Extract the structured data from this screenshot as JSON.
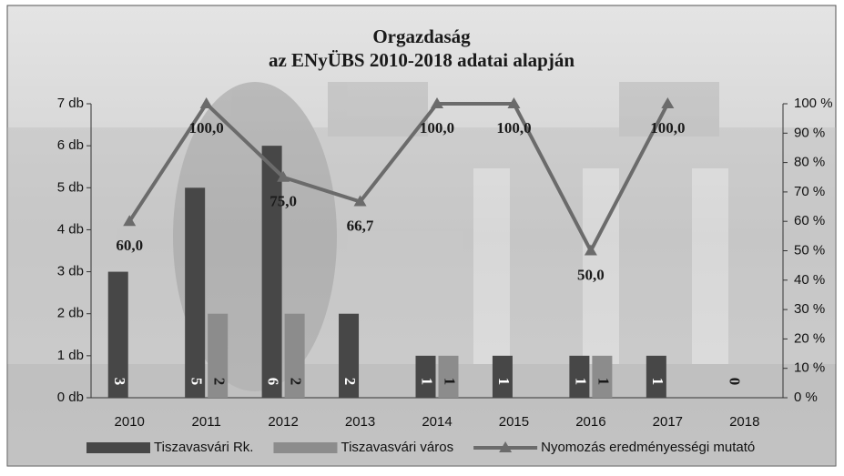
{
  "chart_data": {
    "type": "bar-line",
    "title": "Orgazdaság",
    "subtitle": "az ENyÜBS 2010-2018 adatai alapján",
    "categories": [
      "2010",
      "2011",
      "2012",
      "2013",
      "2014",
      "2015",
      "2016",
      "2017",
      "2018"
    ],
    "series": [
      {
        "name": "Tiszavasvári Rk.",
        "type": "bar",
        "color": "#474747",
        "values": [
          3,
          5,
          6,
          2,
          1,
          1,
          1,
          1,
          0
        ]
      },
      {
        "name": "Tiszavasvári város",
        "type": "bar",
        "color": "#8c8c8c",
        "values": [
          null,
          2,
          2,
          null,
          1,
          null,
          1,
          null,
          null
        ]
      },
      {
        "name": "Nyomozás eredményességi mutató",
        "type": "line",
        "axis": "y2",
        "color": "#6b6b6b",
        "values": [
          60,
          100,
          75,
          66.7,
          100,
          100,
          50,
          100,
          null
        ],
        "value_labels": [
          "60,0",
          "100,0",
          "75,0",
          "66,7",
          "100,0",
          "100,0",
          "50,0",
          "100,0",
          null
        ]
      }
    ],
    "ylim": [
      0,
      7
    ],
    "yticks": [
      {
        "value": 0,
        "label": "0 db"
      },
      {
        "value": 1,
        "label": "1 db"
      },
      {
        "value": 2,
        "label": "2 db"
      },
      {
        "value": 3,
        "label": "3 db"
      },
      {
        "value": 4,
        "label": "4 db"
      },
      {
        "value": 5,
        "label": "5 db"
      },
      {
        "value": 6,
        "label": "6 db"
      },
      {
        "value": 7,
        "label": "7 db"
      }
    ],
    "y2lim": [
      0,
      100
    ],
    "y2ticks": [
      {
        "value": 0,
        "label": "0 %"
      },
      {
        "value": 10,
        "label": "10 %"
      },
      {
        "value": 20,
        "label": "20 %"
      },
      {
        "value": 30,
        "label": "30 %"
      },
      {
        "value": 40,
        "label": "40 %"
      },
      {
        "value": 50,
        "label": "50 %"
      },
      {
        "value": 60,
        "label": "60 %"
      },
      {
        "value": 70,
        "label": "70 %"
      },
      {
        "value": 80,
        "label": "80 %"
      },
      {
        "value": 90,
        "label": "90 %"
      },
      {
        "value": 100,
        "label": "100 %"
      }
    ]
  }
}
